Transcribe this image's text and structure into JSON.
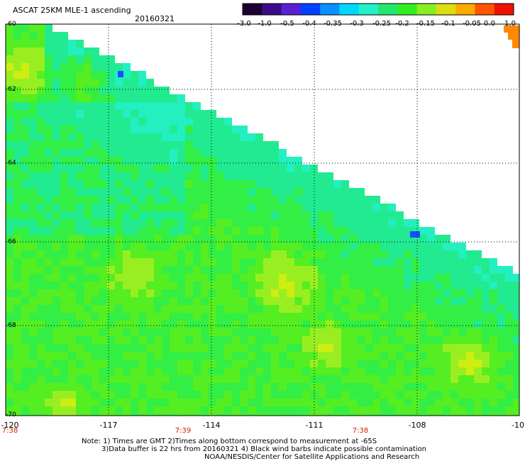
{
  "header": {
    "title": "ASCAT 25KM MLE-1 ascending",
    "date": "20160321"
  },
  "colorbar": {
    "labels": [
      "-3.0",
      "-1.0",
      "-0.5",
      "-0.4",
      "-0.35",
      "-0.3",
      "-0.25",
      "-0.2",
      "-0.15",
      "-0.1",
      "-0.05",
      "0.0",
      "1.0"
    ],
    "colors": [
      "#1a0033",
      "#3b0a8a",
      "#5a1fd0",
      "#0040ff",
      "#0a90ff",
      "#00d8ff",
      "#22f0c8",
      "#22e870",
      "#33ee22",
      "#88ee22",
      "#dddd11",
      "#ffaa00",
      "#ff5500",
      "#ee1100"
    ]
  },
  "map": {
    "lat_labels": [
      "-60",
      "-62",
      "-64",
      "-66",
      "-68",
      "-70"
    ],
    "lon_labels": [
      "-120",
      "-117",
      "-114",
      "-111",
      "-108",
      "-10"
    ],
    "time_labels": [
      "7:38",
      "7:39",
      "7:38"
    ]
  },
  "notes": {
    "line1": "Note: 1) Times are GMT 2)Times along bottom correspond to measurement at -65S",
    "line2": "3)Data buffer is 22 hrs from 20160321 4) Black wind barbs indicate possible contamination",
    "line3": "NOAA/NESDIS/Center for Satellite Applications and Research"
  }
}
